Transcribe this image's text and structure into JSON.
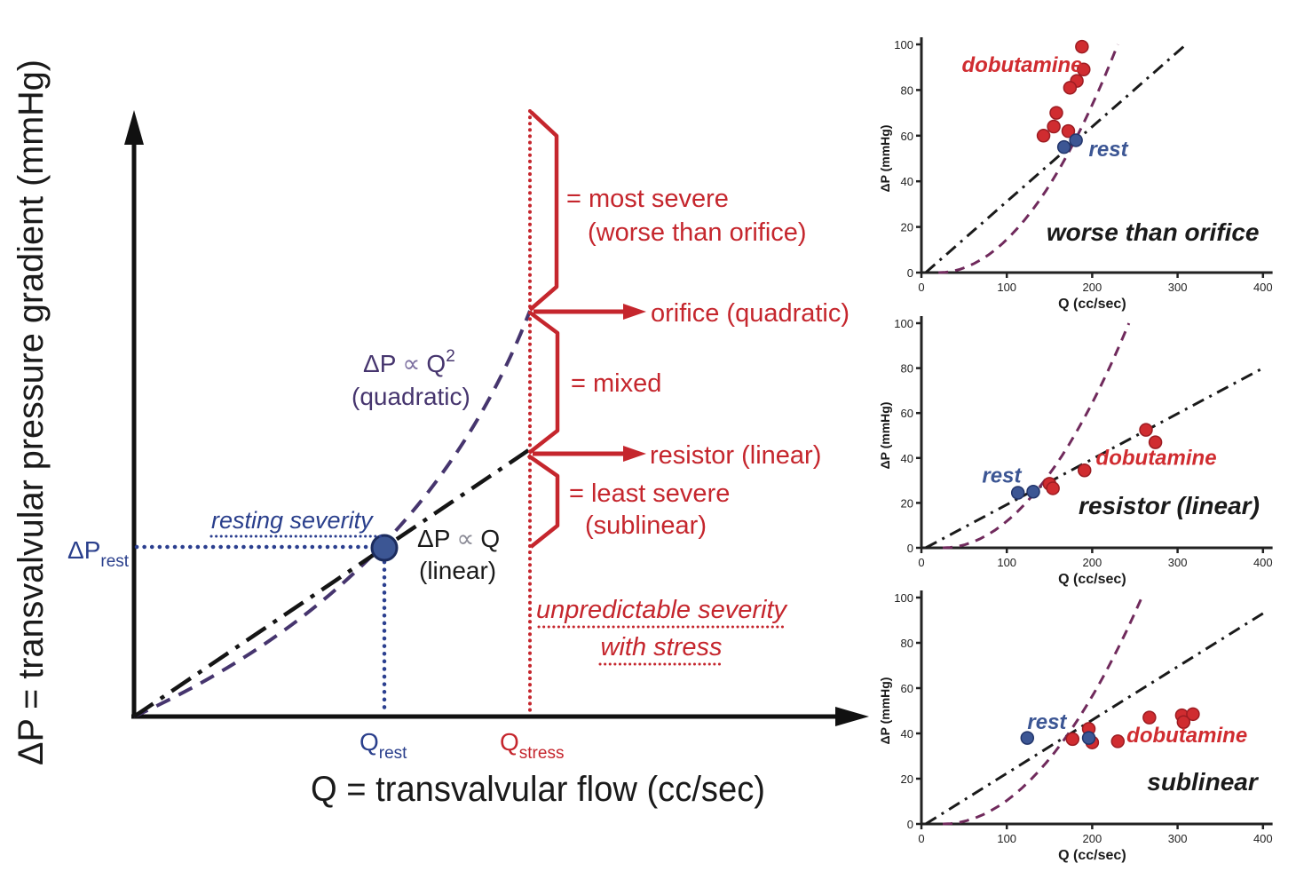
{
  "figure": {
    "y_axis_label": "ΔP = transvalvular pressure gradient (mmHg)",
    "x_axis_label": "Q = transvalvular flow (cc/sec)",
    "resting_severity_label": "resting severity",
    "dp_rest": {
      "base": "ΔP",
      "sub": "rest"
    },
    "q_rest": {
      "base": "Q",
      "sub": "rest"
    },
    "q_stress": {
      "base": "Q",
      "sub": "stress"
    },
    "quadratic_formula": {
      "lhs": "ΔP",
      "prop": "∝",
      "rhs": "Q",
      "sup": "2",
      "name": "(quadratic)"
    },
    "linear_formula": {
      "lhs": "ΔP",
      "prop": "∝",
      "rhs": "Q",
      "name": "(linear)"
    },
    "annotations": {
      "most_severe_line1": "= most severe",
      "most_severe_line2": "(worse than orifice)",
      "orifice_arrow": "orifice (quadratic)",
      "mixed": "= mixed",
      "resistor_arrow": "resistor (linear)",
      "least_severe_line1": "= least severe",
      "least_severe_line2": "(sublinear)",
      "unpredictable_line1": "unpredictable severity",
      "unpredictable_line2": "with stress"
    }
  },
  "colors": {
    "red": "#c5262d",
    "blue": "#2a3f8c",
    "purple": "#46356e",
    "panel_purple": "#702a5c",
    "rest_dot": "#3c5694",
    "dobutamine_dot": "#d02c30",
    "black": "#1a1a1a"
  },
  "chart_data": [
    {
      "type": "scatter",
      "title": "worse than orifice",
      "xlabel": "Q (cc/sec)",
      "ylabel": "ΔP (mmHg)",
      "xlim": [
        0,
        400
      ],
      "ylim": [
        0,
        100
      ],
      "xticks": [
        0,
        100,
        200,
        300,
        400
      ],
      "yticks": [
        0,
        20,
        40,
        60,
        80,
        100
      ],
      "reference_lines": [
        {
          "name": "linear-dash-dot",
          "type": "linear",
          "x0": 5,
          "x1": 310,
          "y1": 100
        },
        {
          "name": "quadratic-dashed",
          "type": "quadratic",
          "x0": 20,
          "x1": 230,
          "y1": 100
        }
      ],
      "series": [
        {
          "name": "dobutamine",
          "color": "#d02c30",
          "stroke": "#9c1c22",
          "points": [
            [
              188,
              99
            ],
            [
              190,
              89
            ],
            [
              182,
              84
            ],
            [
              174,
              81
            ],
            [
              158,
              70
            ],
            [
              155,
              64
            ],
            [
              172,
              62
            ],
            [
              143,
              60
            ]
          ]
        },
        {
          "name": "rest",
          "color": "#3c5694",
          "stroke": "#22356b",
          "points": [
            [
              167,
              55
            ],
            [
              181,
              58
            ]
          ]
        }
      ],
      "labels": {
        "dobutamine": {
          "x": 118,
          "y": 88,
          "anchor": "middle"
        },
        "rest": {
          "x": 196,
          "y": 51,
          "anchor": "start"
        },
        "title_pos": {
          "x": 271,
          "y": 14
        }
      }
    },
    {
      "type": "scatter",
      "title": "resistor (linear)",
      "xlabel": "Q (cc/sec)",
      "ylabel": "ΔP (mmHg)",
      "xlim": [
        0,
        400
      ],
      "ylim": [
        0,
        100
      ],
      "xticks": [
        0,
        100,
        200,
        300,
        400
      ],
      "yticks": [
        0,
        20,
        40,
        60,
        80,
        100
      ],
      "reference_lines": [
        {
          "name": "linear-dash-dot",
          "type": "linear",
          "x0": 5,
          "x1": 400,
          "y1": 80
        },
        {
          "name": "quadratic-dashed",
          "type": "quadratic",
          "x0": 25,
          "x1": 243,
          "y1": 100
        }
      ],
      "series": [
        {
          "name": "dobutamine",
          "color": "#d02c30",
          "stroke": "#9c1c22",
          "points": [
            [
              150,
              28.5
            ],
            [
              154,
              26.5
            ],
            [
              191,
              34.5
            ],
            [
              263,
              52.5
            ],
            [
              274,
              47
            ]
          ]
        },
        {
          "name": "rest",
          "color": "#3c5694",
          "stroke": "#22356b",
          "points": [
            [
              113,
              24.5
            ],
            [
              131,
              25
            ]
          ]
        }
      ],
      "labels": {
        "dobutamine": {
          "x": 275,
          "y": 37,
          "anchor": "middle"
        },
        "rest": {
          "x": 94,
          "y": 29,
          "anchor": "middle"
        },
        "title_pos": {
          "x": 290,
          "y": 15
        }
      }
    },
    {
      "type": "scatter",
      "title": "sublinear",
      "xlabel": "Q (cc/sec)",
      "ylabel": "ΔP (mmHg)",
      "xlim": [
        0,
        400
      ],
      "ylim": [
        0,
        100
      ],
      "xticks": [
        0,
        100,
        200,
        300,
        400
      ],
      "yticks": [
        0,
        20,
        40,
        60,
        80,
        100
      ],
      "reference_lines": [
        {
          "name": "linear-dash-dot",
          "type": "linear",
          "x0": 5,
          "x1": 400,
          "y1": 93
        },
        {
          "name": "quadratic-dashed",
          "type": "quadratic",
          "x0": 25,
          "x1": 258,
          "y1": 100
        }
      ],
      "series": [
        {
          "name": "dobutamine",
          "color": "#d02c30",
          "stroke": "#9c1c22",
          "points": [
            [
              177,
              37.5
            ],
            [
              196,
              42
            ],
            [
              200,
              36
            ],
            [
              230,
              36.5
            ],
            [
              267,
              47
            ],
            [
              305,
              48
            ],
            [
              318,
              48.5
            ],
            [
              307,
              45
            ]
          ]
        },
        {
          "name": "rest",
          "color": "#3c5694",
          "stroke": "#22356b",
          "points": [
            [
              124,
              38
            ],
            [
              196,
              38
            ]
          ]
        }
      ],
      "labels": {
        "dobutamine": {
          "x": 311,
          "y": 36,
          "anchor": "middle"
        },
        "rest": {
          "x": 147,
          "y": 42,
          "anchor": "middle"
        },
        "title_pos": {
          "x": 329,
          "y": 15
        }
      }
    }
  ]
}
